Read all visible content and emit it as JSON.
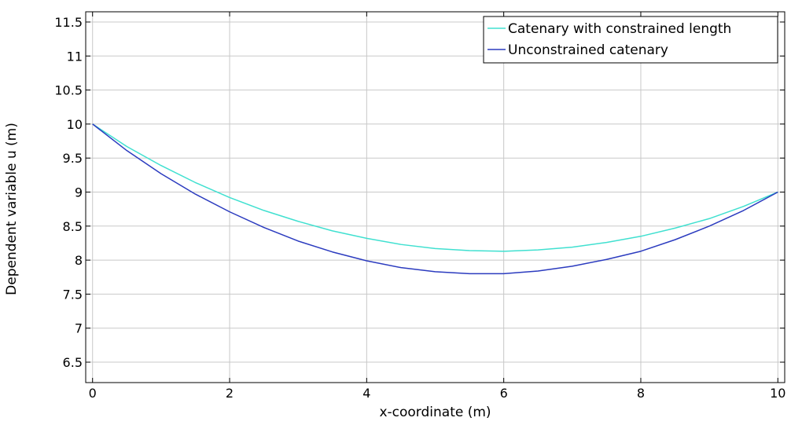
{
  "chart_data": {
    "type": "line",
    "title": "",
    "xlabel": "x-coordinate (m)",
    "ylabel": "Dependent variable u (m)",
    "xlim": [
      -0.1,
      10.1
    ],
    "ylim": [
      6.2,
      11.65
    ],
    "x_ticks": [
      0,
      2,
      4,
      6,
      8,
      10
    ],
    "y_ticks": [
      6.5,
      7,
      7.5,
      8,
      8.5,
      9,
      9.5,
      10,
      10.5,
      11,
      11.5
    ],
    "grid": true,
    "legend_position": "top-right",
    "x": [
      0,
      0.5,
      1,
      1.5,
      2,
      2.5,
      3,
      3.5,
      4,
      4.5,
      5,
      5.5,
      6,
      6.5,
      7,
      7.5,
      8,
      8.5,
      9,
      9.5,
      10
    ],
    "series": [
      {
        "name": "Catenary with constrained length",
        "color": "#40e0d0",
        "values": [
          10.0,
          9.67,
          9.39,
          9.14,
          8.92,
          8.73,
          8.57,
          8.43,
          8.32,
          8.23,
          8.17,
          8.14,
          8.13,
          8.15,
          8.19,
          8.26,
          8.35,
          8.47,
          8.61,
          8.79,
          9.0
        ]
      },
      {
        "name": "Unconstrained catenary",
        "color": "#2b3bbf",
        "values": [
          10.0,
          9.61,
          9.27,
          8.97,
          8.71,
          8.48,
          8.28,
          8.12,
          7.99,
          7.89,
          7.83,
          7.8,
          7.8,
          7.84,
          7.91,
          8.01,
          8.13,
          8.3,
          8.5,
          8.73,
          9.0
        ]
      }
    ]
  }
}
